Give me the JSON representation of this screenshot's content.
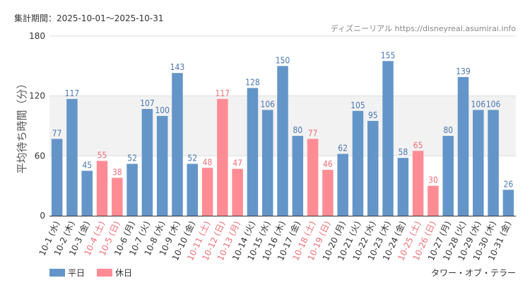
{
  "header": {
    "period_label": "集計期間：2025-10-01～2025-10-31",
    "source": "ディズニーリアル https://disneyreal.asumirai.info"
  },
  "attraction": "タワー・オブ・テラー",
  "legend": [
    {
      "label": "平日",
      "color": "#6495c8"
    },
    {
      "label": "休日",
      "color": "#ff8c94"
    }
  ],
  "chart_data": {
    "type": "bar",
    "title": "",
    "ylabel": "平均待ち時間（分）",
    "xlabel": "",
    "ylim": [
      0,
      180
    ],
    "yticks": [
      0,
      60,
      120,
      180
    ],
    "highlight_band": [
      60,
      120
    ],
    "grid": true,
    "categories": [
      "10-1 (水)",
      "10-2 (木)",
      "10-3 (金)",
      "10-4 (土)",
      "10-5 (日)",
      "10-6 (月)",
      "10-7 (火)",
      "10-8 (水)",
      "10-9 (木)",
      "10-10 (金)",
      "10-11 (土)",
      "10-12 (日)",
      "10-13 (月)",
      "10-14 (火)",
      "10-15 (水)",
      "10-16 (木)",
      "10-17 (金)",
      "10-18 (土)",
      "10-19 (日)",
      "10-20 (月)",
      "10-21 (火)",
      "10-22 (水)",
      "10-23 (木)",
      "10-24 (金)",
      "10-25 (土)",
      "10-26 (日)",
      "10-27 (月)",
      "10-28 (火)",
      "10-29 (水)",
      "10-30 (木)",
      "10-31 (金)"
    ],
    "values": [
      77,
      117,
      45,
      55,
      38,
      52,
      107,
      100,
      143,
      52,
      48,
      117,
      47,
      128,
      106,
      150,
      80,
      77,
      46,
      62,
      105,
      95,
      155,
      58,
      65,
      30,
      80,
      139,
      106,
      106,
      26
    ],
    "day_type": [
      "weekday",
      "weekday",
      "weekday",
      "holiday",
      "holiday",
      "weekday",
      "weekday",
      "weekday",
      "weekday",
      "weekday",
      "holiday",
      "holiday",
      "holiday",
      "weekday",
      "weekday",
      "weekday",
      "weekday",
      "holiday",
      "holiday",
      "weekday",
      "weekday",
      "weekday",
      "weekday",
      "weekday",
      "holiday",
      "holiday",
      "weekday",
      "weekday",
      "weekday",
      "weekday",
      "weekday"
    ],
    "colors": {
      "weekday": "#6495c8",
      "holiday": "#ff8c94",
      "weekday_text": "#4a78b0",
      "holiday_text": "#ef6f78",
      "band": "#f2f2f2"
    }
  }
}
